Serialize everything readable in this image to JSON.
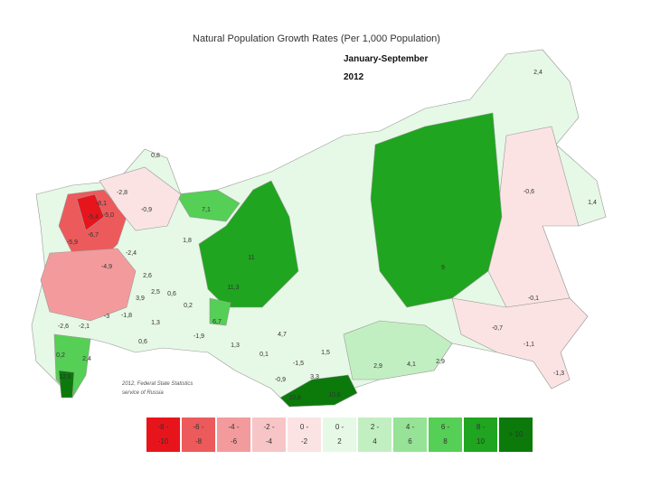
{
  "title": "Natural Population Growth Rates (Per 1,000 Population)",
  "subtitle": [
    "January-September",
    "2012"
  ],
  "source_note": [
    "2012, Federal State Statistics",
    "service of Russia"
  ],
  "region_labels": [
    "2,4",
    "-0,6",
    "1,4",
    "0,8",
    "-2,8",
    "-0,9",
    "7,1",
    "1,8",
    "11",
    "9",
    "11,3",
    "-0,1",
    "-0,7",
    "-1,1",
    "-1,3",
    "2,9",
    "4,1",
    "2,9",
    "1,5",
    "4,7",
    "0,1",
    "-1,5",
    "-0,9",
    "3,3",
    "10,8",
    "10,6",
    "6,7",
    "1,3",
    "-1,9",
    "0,6",
    "1,3",
    "0,2",
    "0,6",
    "2,5",
    "3,9",
    "2,6",
    "-1,8",
    "-3",
    "-2,1",
    "-2,6",
    "-6,7",
    "-5,4",
    "-8,1",
    "-5,0",
    "-5,9",
    "-4,9",
    "-2,4",
    "0,2",
    "2,4",
    "12,6"
  ],
  "legend": [
    {
      "lines": [
        "-8 -",
        "-10"
      ],
      "color": "#e8141c"
    },
    {
      "lines": [
        "-6 -",
        "-8"
      ],
      "color": "#ec5a5c"
    },
    {
      "lines": [
        "-4 -",
        "-6"
      ],
      "color": "#f39b9c"
    },
    {
      "lines": [
        "-2 -",
        "-4"
      ],
      "color": "#f7c5c6"
    },
    {
      "lines": [
        "0 -",
        "-2"
      ],
      "color": "#fbe3e4"
    },
    {
      "lines": [
        "0 -",
        "2"
      ],
      "color": "#e6f8e6"
    },
    {
      "lines": [
        "2 -",
        "4"
      ],
      "color": "#c2efc2"
    },
    {
      "lines": [
        "4 -",
        "6"
      ],
      "color": "#96e296"
    },
    {
      "lines": [
        "6 -",
        "8"
      ],
      "color": "#55cf55"
    },
    {
      "lines": [
        "8 -",
        "10"
      ],
      "color": "#1fa51f"
    },
    {
      "lines": [
        "> 10"
      ],
      "color": "#0b7a0b"
    }
  ]
}
